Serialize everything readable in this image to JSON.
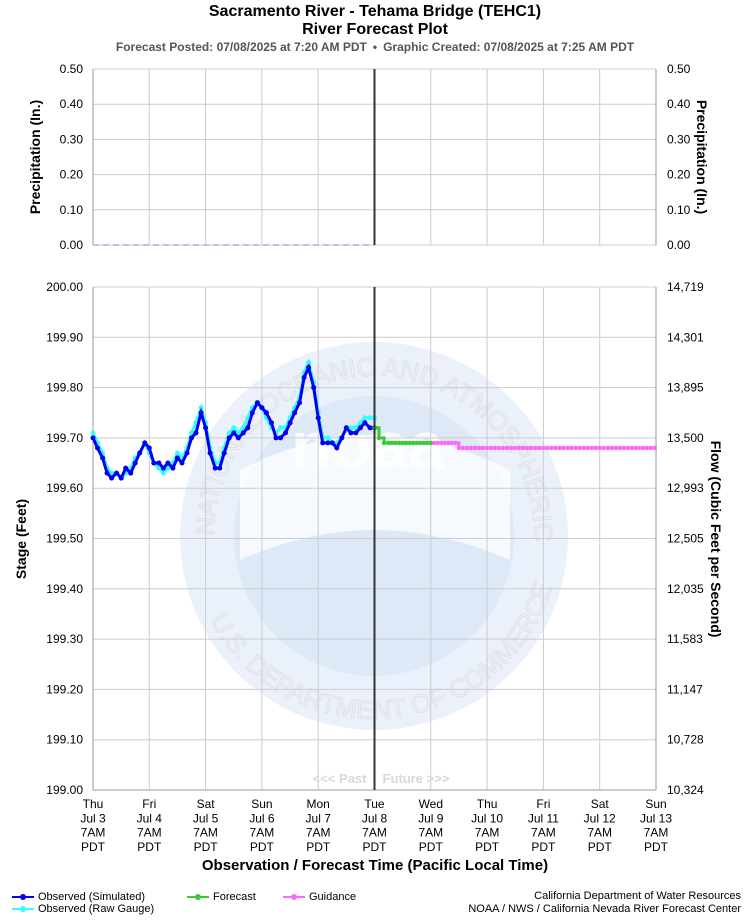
{
  "header": {
    "title": "Sacramento River - Tehama Bridge (TEHC1)",
    "subtitle_main": "River Forecast Plot",
    "forecast_posted": "Forecast Posted: 07/08/2025 at 7:20 AM PDT",
    "separator": "•",
    "graphic_created": "Graphic Created: 07/08/2025 at 7:25 AM PDT"
  },
  "watermark": {
    "top_text": "NATIONAL OCEANIC AND ATMOSPHERIC ADMINISTRATION",
    "bottom_text": "U.S. DEPARTMENT OF COMMERCE",
    "center_text": "noaa"
  },
  "colors": {
    "observed_simulated": "#0000ee",
    "observed_raw": "#33ffff",
    "forecast": "#33cc33",
    "guidance": "#ff66ff",
    "grid": "#cccccc",
    "now_line": "#333333",
    "precip_line": "#aaaaee"
  },
  "legend": {
    "observed_simulated": "Observed (Simulated)",
    "observed_raw": "Observed (Raw Gauge)",
    "forecast": "Forecast",
    "guidance": "Guidance"
  },
  "credits": {
    "line1": "California Department of Water Resources",
    "line2": "NOAA / NWS / California Nevada River Forecast Center"
  },
  "chart_data": [
    {
      "type": "line",
      "ylabel_left": "Precipitation (In.)",
      "ylabel_right": "Precipitation (In.)",
      "ylim": [
        0,
        0.5
      ],
      "yticks": [
        "0.00",
        "0.10",
        "0.20",
        "0.30",
        "0.40",
        "0.50"
      ],
      "grid": true,
      "series": [
        {
          "x": [
            "Jul 3 00:00",
            "Jul 8 00:00"
          ],
          "values": [
            0.0,
            0.0
          ]
        }
      ]
    },
    {
      "type": "line",
      "ylabel_left": "Stage (Feet)",
      "ylabel_right": "Flow (Cubic Feet per Second)",
      "xlabel": "Observation / Forecast Time (Pacific Local Time)",
      "ylim": [
        199.0,
        200.0
      ],
      "yticks_left": [
        "199.00",
        "199.10",
        "199.20",
        "199.30",
        "199.40",
        "199.50",
        "199.60",
        "199.70",
        "199.80",
        "199.90",
        "200.00"
      ],
      "yticks_right": [
        "10,324",
        "10,728",
        "11,147",
        "11,583",
        "12,035",
        "12,505",
        "12,993",
        "13,500",
        "13,895",
        "14,301",
        "14,719"
      ],
      "x_ticks": [
        [
          "Thu",
          "Jul 3",
          "7AM",
          "PDT"
        ],
        [
          "Fri",
          "Jul 4",
          "7AM",
          "PDT"
        ],
        [
          "Sat",
          "Jul 5",
          "7AM",
          "PDT"
        ],
        [
          "Sun",
          "Jul 6",
          "7AM",
          "PDT"
        ],
        [
          "Mon",
          "Jul 7",
          "7AM",
          "PDT"
        ],
        [
          "Tue",
          "Jul 8",
          "7AM",
          "PDT"
        ],
        [
          "Wed",
          "Jul 9",
          "7AM",
          "PDT"
        ],
        [
          "Thu",
          "Jul 10",
          "7AM",
          "PDT"
        ],
        [
          "Fri",
          "Jul 11",
          "7AM",
          "PDT"
        ],
        [
          "Sat",
          "Jul 12",
          "7AM",
          "PDT"
        ],
        [
          "Sun",
          "Jul 13",
          "7AM",
          "PDT"
        ]
      ],
      "past_label": "<<< Past",
      "future_label": "Future >>>",
      "grid": true,
      "x_unit": "days after Jul 3 7AM PDT",
      "series": [
        {
          "name": "Observed (Simulated)",
          "x": [
            0.0,
            0.08,
            0.17,
            0.25,
            0.33,
            0.42,
            0.5,
            0.58,
            0.67,
            0.75,
            0.83,
            0.92,
            1.0,
            1.08,
            1.17,
            1.25,
            1.33,
            1.42,
            1.5,
            1.58,
            1.67,
            1.75,
            1.83,
            1.92,
            2.0,
            2.08,
            2.17,
            2.25,
            2.33,
            2.42,
            2.5,
            2.58,
            2.67,
            2.75,
            2.83,
            2.92,
            3.0,
            3.08,
            3.17,
            3.25,
            3.33,
            3.42,
            3.5,
            3.58,
            3.67,
            3.75,
            3.83,
            3.92,
            4.0,
            4.08,
            4.17,
            4.25,
            4.33,
            4.42,
            4.5,
            4.58,
            4.67,
            4.75,
            4.83,
            4.92,
            5.0
          ],
          "values": [
            199.7,
            199.68,
            199.66,
            199.63,
            199.62,
            199.63,
            199.62,
            199.64,
            199.63,
            199.65,
            199.67,
            199.69,
            199.68,
            199.65,
            199.65,
            199.64,
            199.65,
            199.64,
            199.66,
            199.65,
            199.67,
            199.7,
            199.71,
            199.75,
            199.72,
            199.67,
            199.64,
            199.64,
            199.67,
            199.7,
            199.71,
            199.7,
            199.71,
            199.72,
            199.75,
            199.77,
            199.76,
            199.75,
            199.73,
            199.7,
            199.7,
            199.71,
            199.73,
            199.75,
            199.77,
            199.82,
            199.84,
            199.8,
            199.74,
            199.69,
            199.69,
            199.69,
            199.68,
            199.7,
            199.72,
            199.71,
            199.71,
            199.72,
            199.73,
            199.72,
            199.72
          ]
        },
        {
          "name": "Observed (Raw Gauge)",
          "x": [
            0.0,
            0.08,
            0.17,
            0.25,
            0.33,
            0.42,
            0.5,
            0.58,
            0.67,
            0.75,
            0.83,
            0.92,
            1.0,
            1.08,
            1.17,
            1.25,
            1.33,
            1.42,
            1.5,
            1.58,
            1.67,
            1.75,
            1.83,
            1.92,
            2.0,
            2.08,
            2.17,
            2.25,
            2.33,
            2.42,
            2.5,
            2.58,
            2.67,
            2.75,
            2.83,
            2.92,
            3.0,
            3.08,
            3.17,
            3.25,
            3.33,
            3.42,
            3.5,
            3.58,
            3.67,
            3.75,
            3.83,
            3.92,
            4.0,
            4.08,
            4.17,
            4.25,
            4.33,
            4.42,
            4.5,
            4.58,
            4.67,
            4.75,
            4.83,
            4.92,
            5.0
          ],
          "values": [
            199.71,
            199.69,
            199.67,
            199.64,
            199.63,
            199.63,
            199.62,
            199.63,
            199.64,
            199.66,
            199.67,
            199.69,
            199.67,
            199.65,
            199.64,
            199.63,
            199.64,
            199.65,
            199.67,
            199.66,
            199.68,
            199.71,
            199.73,
            199.76,
            199.73,
            199.68,
            199.65,
            199.65,
            199.68,
            199.71,
            199.72,
            199.71,
            199.72,
            199.74,
            199.76,
            199.77,
            199.76,
            199.74,
            199.72,
            199.71,
            199.72,
            199.72,
            199.74,
            199.76,
            199.78,
            199.83,
            199.85,
            199.81,
            199.75,
            199.7,
            199.7,
            199.69,
            199.69,
            199.7,
            199.72,
            199.72,
            199.72,
            199.73,
            199.74,
            199.74,
            199.74
          ]
        },
        {
          "name": "Forecast",
          "x": [
            5.0,
            5.08,
            5.17,
            5.25,
            5.5,
            5.75,
            6.0
          ],
          "values": [
            199.72,
            199.7,
            199.69,
            199.69,
            199.69,
            199.69,
            199.69
          ]
        },
        {
          "name": "Guidance",
          "x": [
            6.0,
            6.25,
            6.5,
            7.0,
            7.5,
            8.0,
            8.5,
            9.0,
            9.5,
            9.98
          ],
          "values": [
            199.69,
            199.69,
            199.68,
            199.68,
            199.68,
            199.68,
            199.68,
            199.68,
            199.68,
            199.68
          ]
        }
      ]
    }
  ]
}
